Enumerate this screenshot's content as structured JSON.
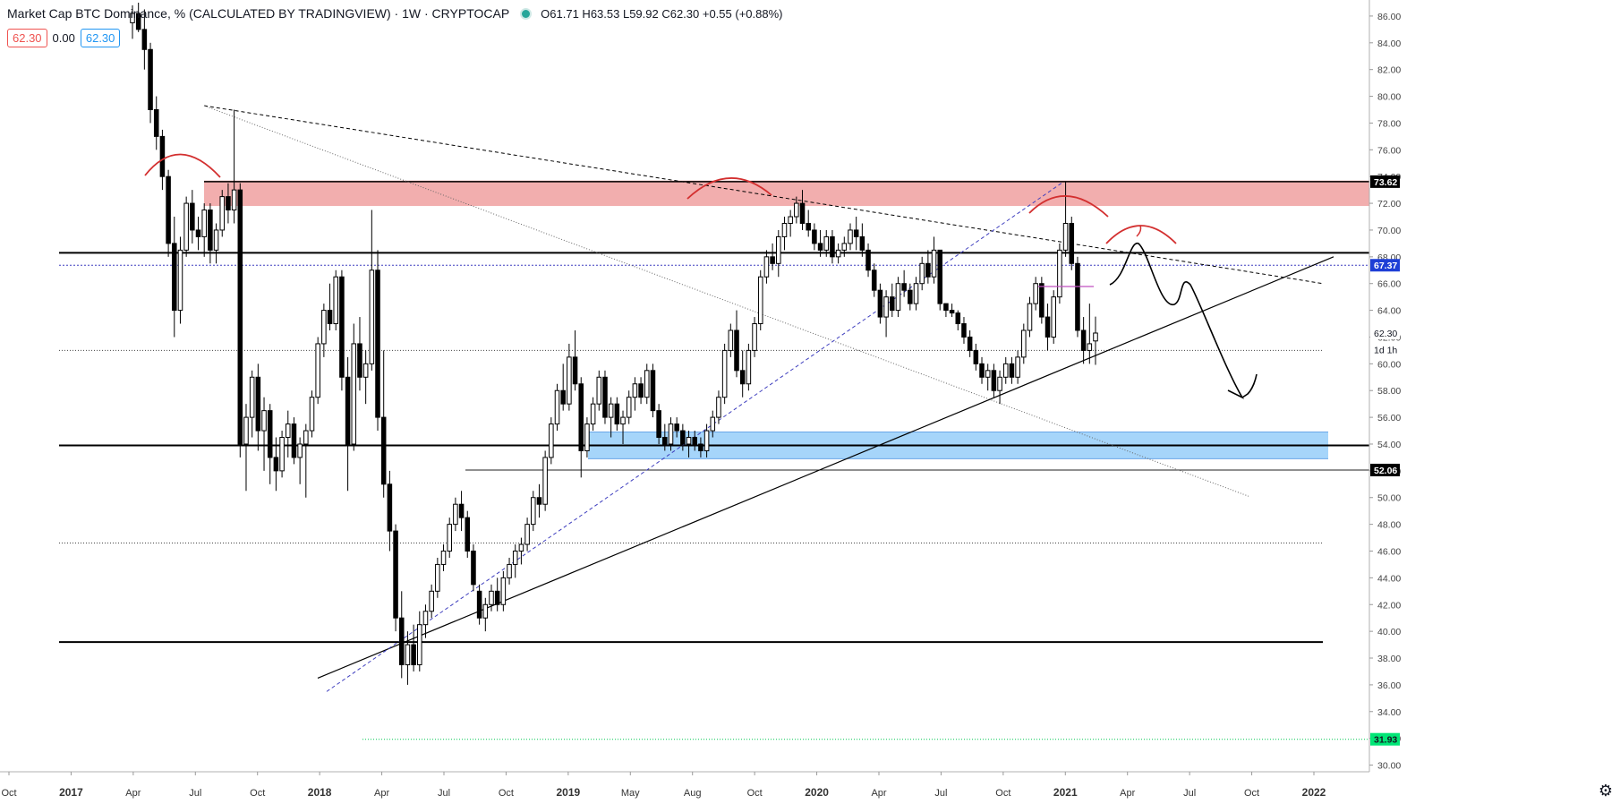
{
  "header": {
    "title": "Market Cap BTC Dominance, % (CALCULATED BY TRADINGVIEW) · 1W · CRYPTOCAP",
    "ohlc": "O61.71  H63.53  L59.92  C62.30  +0.55 (+0.88%)"
  },
  "pills": {
    "left": "62.30",
    "mid": "0.00",
    "right": "62.30"
  },
  "colors": {
    "up": "#ffffff",
    "down": "#000000",
    "resistance_zone": "#ef9a9a",
    "support_zone": "#90caf9",
    "arc": "#d32f2f",
    "trend_dashed": "#3f3fbf"
  },
  "icons": {
    "settings": "gear-icon"
  },
  "chart_data": {
    "type": "candlestick",
    "x_ticks": [
      "Oct",
      "2017",
      "Apr",
      "Jul",
      "Oct",
      "2018",
      "Apr",
      "Jul",
      "Oct",
      "2019",
      "May",
      "Aug",
      "Oct",
      "2020",
      "Apr",
      "Jul",
      "Oct",
      "2021",
      "Apr",
      "Jul",
      "Oct",
      "2022"
    ],
    "y_ticks": [
      "86.00",
      "84.00",
      "82.00",
      "80.00",
      "78.00",
      "76.00",
      "74.00",
      "72.00",
      "70.00",
      "68.00",
      "66.00",
      "64.00",
      "62.00",
      "60.00",
      "58.00",
      "56.00",
      "54.00",
      "52.00",
      "50.00",
      "48.00",
      "46.00",
      "44.00",
      "42.00",
      "40.00",
      "38.00",
      "36.00",
      "34.00",
      "32.00",
      "30.00"
    ],
    "ylim": [
      29.5,
      87.2
    ],
    "price_labels": [
      {
        "text": "73.62",
        "value": 73.62,
        "bg": "#000000",
        "fg": "#ffffff"
      },
      {
        "text": "67.37",
        "value": 67.37,
        "bg": "#1e3fd6",
        "fg": "#ffffff"
      },
      {
        "text": "62.30",
        "value": 62.3,
        "bg": "#ffffff",
        "fg": "#131722"
      },
      {
        "text": "1d 1h",
        "value": 61.05,
        "bg": "#ffffff",
        "fg": "#131722"
      },
      {
        "text": "52.06",
        "value": 52.06,
        "bg": "#000000",
        "fg": "#ffffff"
      },
      {
        "text": "31.93",
        "value": 31.93,
        "bg": "#00e676",
        "fg": "#131722"
      }
    ],
    "zones": [
      {
        "name": "resistance",
        "from": 71.8,
        "to": 73.7
      },
      {
        "name": "support",
        "from": 52.9,
        "to": 54.9
      }
    ],
    "levels": [
      68.3,
      67.37,
      61.0,
      53.9,
      52.06,
      46.6,
      39.2,
      31.93
    ],
    "series": [
      {
        "name": "",
        "ohlc": [
          [
            85.5,
            86.8,
            84.3,
            86.2
          ],
          [
            86.2,
            87.0,
            84.8,
            85.0
          ],
          [
            85.0,
            86.5,
            82.0,
            83.5
          ],
          [
            83.5,
            84.0,
            78.0,
            79.0
          ],
          [
            79.0,
            80.0,
            76.0,
            77.0
          ],
          [
            77.0,
            77.5,
            73.0,
            74.0
          ],
          [
            74.0,
            74.5,
            68.0,
            69.0
          ],
          [
            69.0,
            71.0,
            62.0,
            64.0
          ],
          [
            64.0,
            69.5,
            63.0,
            68.5
          ],
          [
            68.5,
            72.5,
            68.0,
            72.0
          ],
          [
            72.0,
            73.0,
            69.0,
            70.0
          ],
          [
            70.0,
            71.0,
            68.5,
            69.5
          ],
          [
            69.5,
            72.0,
            68.0,
            71.5
          ],
          [
            71.5,
            72.0,
            67.5,
            68.5
          ],
          [
            68.5,
            70.5,
            67.5,
            70.0
          ],
          [
            70.0,
            73.0,
            69.5,
            72.5
          ],
          [
            72.5,
            73.5,
            70.5,
            71.5
          ],
          [
            71.5,
            79.0,
            70.5,
            73.0
          ],
          [
            73.0,
            73.5,
            53.0,
            54.0
          ],
          [
            54.0,
            57.0,
            50.5,
            56.0
          ],
          [
            56.0,
            59.5,
            54.5,
            59.0
          ],
          [
            59.0,
            60.0,
            53.5,
            55.0
          ],
          [
            55.0,
            57.5,
            52.0,
            56.5
          ],
          [
            56.5,
            57.0,
            51.0,
            53.0
          ],
          [
            53.0,
            54.5,
            50.5,
            52.0
          ],
          [
            52.0,
            55.0,
            51.5,
            54.5
          ],
          [
            54.5,
            56.5,
            53.0,
            55.5
          ],
          [
            55.5,
            56.0,
            52.5,
            53.0
          ],
          [
            53.0,
            54.5,
            51.0,
            54.0
          ],
          [
            54.0,
            55.5,
            50.0,
            55.0
          ],
          [
            55.0,
            58.0,
            54.5,
            57.5
          ],
          [
            57.5,
            62.0,
            57.0,
            61.5
          ],
          [
            61.5,
            64.5,
            60.5,
            64.0
          ],
          [
            64.0,
            66.0,
            62.5,
            63.0
          ],
          [
            63.0,
            67.0,
            62.5,
            66.5
          ],
          [
            66.5,
            67.0,
            58.0,
            59.0
          ],
          [
            59.0,
            60.5,
            50.5,
            54.0
          ],
          [
            54.0,
            63.0,
            53.5,
            61.5
          ],
          [
            61.5,
            63.5,
            58.0,
            59.0
          ],
          [
            59.0,
            61.0,
            57.0,
            60.0
          ],
          [
            60.0,
            71.5,
            59.5,
            67.0
          ],
          [
            67.0,
            68.5,
            55.0,
            56.0
          ],
          [
            56.0,
            61.0,
            50.0,
            51.0
          ],
          [
            51.0,
            52.0,
            46.0,
            47.5
          ],
          [
            47.5,
            48.0,
            40.0,
            41.0
          ],
          [
            41.0,
            43.0,
            36.5,
            37.5
          ],
          [
            37.5,
            40.0,
            36.0,
            39.0
          ],
          [
            39.0,
            40.5,
            37.0,
            37.5
          ],
          [
            37.5,
            41.5,
            37.0,
            40.5
          ],
          [
            40.5,
            42.0,
            39.5,
            41.5
          ],
          [
            41.5,
            43.5,
            41.0,
            43.0
          ],
          [
            43.0,
            45.5,
            42.5,
            45.0
          ],
          [
            45.0,
            46.5,
            44.5,
            46.0
          ],
          [
            46.0,
            48.5,
            45.5,
            48.0
          ],
          [
            48.0,
            50.0,
            47.5,
            49.5
          ],
          [
            49.5,
            50.5,
            47.5,
            48.5
          ],
          [
            48.5,
            49.0,
            45.5,
            46.0
          ],
          [
            46.0,
            46.5,
            43.0,
            43.5
          ],
          [
            43.0,
            43.5,
            40.5,
            41.0
          ],
          [
            41.0,
            42.5,
            40.0,
            42.0
          ],
          [
            42.0,
            43.5,
            41.5,
            43.0
          ],
          [
            43.0,
            44.0,
            41.5,
            42.0
          ],
          [
            42.0,
            44.5,
            41.5,
            44.0
          ],
          [
            44.0,
            45.5,
            43.5,
            45.0
          ],
          [
            45.0,
            46.5,
            44.0,
            46.0
          ],
          [
            46.0,
            47.0,
            45.0,
            46.5
          ],
          [
            46.5,
            48.5,
            46.0,
            48.0
          ],
          [
            48.0,
            50.5,
            47.5,
            50.0
          ],
          [
            50.0,
            51.0,
            48.5,
            49.5
          ],
          [
            49.5,
            53.5,
            49.0,
            53.0
          ],
          [
            53.0,
            56.0,
            52.5,
            55.5
          ],
          [
            55.5,
            58.5,
            55.0,
            58.0
          ],
          [
            58.0,
            60.0,
            56.5,
            57.0
          ],
          [
            57.0,
            61.5,
            56.5,
            60.5
          ],
          [
            60.5,
            62.5,
            58.0,
            58.5
          ],
          [
            58.5,
            59.0,
            51.5,
            53.5
          ],
          [
            53.5,
            56.0,
            53.0,
            55.5
          ],
          [
            55.5,
            57.5,
            55.0,
            57.0
          ],
          [
            57.0,
            59.5,
            56.5,
            59.0
          ],
          [
            59.0,
            59.5,
            55.5,
            56.0
          ],
          [
            56.0,
            57.5,
            54.5,
            57.0
          ],
          [
            57.0,
            57.5,
            55.0,
            55.5
          ],
          [
            55.5,
            56.5,
            54.0,
            56.0
          ],
          [
            56.0,
            58.0,
            55.5,
            57.5
          ],
          [
            57.5,
            59.0,
            56.5,
            58.5
          ],
          [
            58.5,
            59.0,
            57.0,
            57.5
          ],
          [
            57.5,
            60.0,
            57.0,
            59.5
          ],
          [
            59.5,
            60.0,
            56.0,
            56.5
          ],
          [
            56.5,
            57.0,
            54.0,
            54.5
          ],
          [
            54.5,
            55.5,
            53.5,
            54.0
          ],
          [
            54.0,
            56.0,
            53.5,
            55.5
          ],
          [
            55.5,
            56.0,
            54.5,
            55.0
          ],
          [
            55.0,
            55.5,
            53.5,
            54.0
          ],
          [
            54.0,
            55.0,
            53.0,
            54.5
          ],
          [
            54.5,
            55.0,
            53.5,
            54.0
          ],
          [
            54.0,
            54.5,
            53.0,
            53.5
          ],
          [
            53.5,
            55.5,
            53.0,
            55.0
          ],
          [
            55.0,
            56.5,
            54.5,
            56.0
          ],
          [
            56.0,
            58.0,
            55.5,
            57.5
          ],
          [
            57.5,
            61.5,
            57.0,
            61.0
          ],
          [
            61.0,
            63.0,
            60.5,
            62.5
          ],
          [
            62.5,
            64.0,
            59.0,
            59.5
          ],
          [
            59.5,
            61.0,
            57.5,
            58.5
          ],
          [
            58.5,
            61.5,
            58.0,
            61.0
          ],
          [
            61.0,
            63.5,
            60.5,
            63.0
          ],
          [
            63.0,
            67.0,
            62.5,
            66.5
          ],
          [
            66.5,
            68.5,
            66.0,
            68.0
          ],
          [
            68.0,
            69.0,
            67.0,
            67.5
          ],
          [
            67.5,
            70.0,
            66.5,
            69.5
          ],
          [
            69.5,
            71.0,
            68.5,
            70.5
          ],
          [
            70.5,
            71.5,
            69.5,
            71.0
          ],
          [
            71.0,
            72.5,
            70.5,
            72.0
          ],
          [
            72.0,
            73.0,
            70.0,
            70.5
          ],
          [
            70.5,
            71.5,
            69.5,
            70.0
          ],
          [
            70.0,
            70.5,
            68.5,
            69.0
          ],
          [
            69.0,
            70.0,
            68.0,
            68.5
          ],
          [
            68.5,
            70.0,
            68.0,
            69.5
          ],
          [
            69.5,
            70.0,
            67.5,
            68.0
          ],
          [
            68.0,
            69.0,
            67.5,
            68.5
          ],
          [
            68.5,
            69.5,
            68.0,
            69.0
          ],
          [
            69.0,
            70.5,
            68.5,
            70.0
          ],
          [
            70.0,
            71.0,
            68.5,
            69.5
          ],
          [
            69.5,
            70.5,
            68.0,
            68.5
          ],
          [
            68.5,
            69.0,
            66.5,
            67.0
          ],
          [
            67.0,
            67.5,
            65.0,
            65.5
          ],
          [
            65.5,
            66.0,
            63.0,
            63.5
          ],
          [
            63.5,
            65.5,
            62.0,
            65.0
          ],
          [
            65.0,
            66.0,
            63.5,
            64.0
          ],
          [
            64.0,
            66.5,
            63.5,
            66.0
          ],
          [
            66.0,
            67.0,
            65.0,
            65.5
          ],
          [
            65.5,
            66.0,
            64.0,
            64.5
          ],
          [
            64.5,
            66.5,
            64.0,
            66.0
          ],
          [
            66.0,
            68.0,
            65.5,
            67.5
          ],
          [
            67.5,
            68.5,
            66.0,
            66.5
          ],
          [
            66.5,
            69.5,
            66.0,
            68.5
          ],
          [
            68.5,
            68.5,
            64.0,
            64.5
          ],
          [
            64.5,
            64.5,
            63.5,
            64.0
          ],
          [
            64.0,
            64.5,
            63.5,
            63.8
          ],
          [
            63.8,
            64.0,
            62.5,
            63.0
          ],
          [
            63.0,
            63.5,
            61.5,
            62.0
          ],
          [
            62.0,
            62.5,
            60.5,
            61.0
          ],
          [
            61.0,
            61.5,
            59.5,
            60.0
          ],
          [
            60.0,
            60.5,
            58.5,
            59.0
          ],
          [
            59.0,
            60.0,
            58.0,
            59.5
          ],
          [
            59.5,
            60.0,
            57.5,
            58.0
          ],
          [
            58.0,
            59.5,
            57.0,
            59.0
          ],
          [
            59.0,
            60.5,
            58.5,
            60.0
          ],
          [
            60.0,
            60.5,
            58.5,
            59.0
          ],
          [
            59.0,
            61.0,
            58.5,
            60.5
          ],
          [
            60.5,
            63.0,
            60.0,
            62.5
          ],
          [
            62.5,
            65.0,
            62.0,
            64.5
          ],
          [
            64.5,
            66.5,
            64.0,
            66.0
          ],
          [
            66.0,
            66.5,
            63.0,
            63.5
          ],
          [
            63.5,
            64.5,
            61.0,
            62.0
          ],
          [
            62.0,
            65.5,
            61.5,
            65.0
          ],
          [
            65.0,
            69.0,
            64.5,
            68.5
          ],
          [
            68.5,
            73.6,
            68.0,
            70.5
          ],
          [
            70.5,
            71.0,
            67.0,
            67.5
          ],
          [
            67.5,
            68.0,
            62.0,
            62.5
          ],
          [
            62.5,
            63.5,
            60.0,
            61.0
          ],
          [
            61.0,
            64.5,
            60.0,
            61.5
          ],
          [
            61.71,
            63.53,
            59.92,
            62.3
          ]
        ]
      }
    ]
  }
}
